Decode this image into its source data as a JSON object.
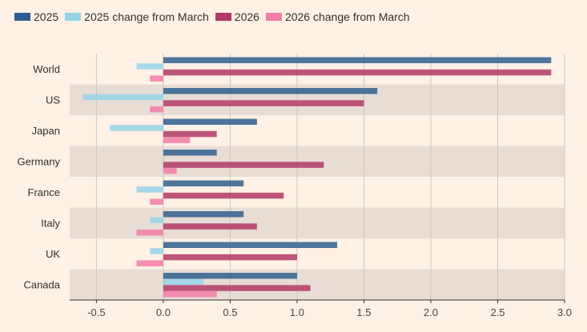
{
  "colors": {
    "background": "#FFF1E5",
    "band": "#E8DDD5",
    "grid": "#CEC6BF",
    "axis": "#33302E"
  },
  "legend": [
    {
      "label": "2025",
      "color": "#2F5F8E"
    },
    {
      "label": "2025 change from March",
      "color": "#96D3EA"
    },
    {
      "label": "2026",
      "color": "#B23A66"
    },
    {
      "label": "2026 change from March",
      "color": "#F37DA7"
    }
  ],
  "chart_data": {
    "type": "bar",
    "orientation": "horizontal",
    "categories": [
      "World",
      "US",
      "Japan",
      "Germany",
      "France",
      "Italy",
      "UK",
      "Canada"
    ],
    "series": [
      {
        "name": "2025",
        "color": "#2F5F8E",
        "values": [
          2.9,
          1.6,
          0.7,
          0.4,
          0.6,
          0.6,
          1.3,
          1.0
        ]
      },
      {
        "name": "2025 change from March",
        "color": "#96D3EA",
        "values": [
          -0.2,
          -0.6,
          -0.4,
          0.0,
          -0.2,
          -0.1,
          -0.1,
          0.3
        ]
      },
      {
        "name": "2026",
        "color": "#B23A66",
        "values": [
          2.9,
          1.5,
          0.4,
          1.2,
          0.9,
          0.7,
          1.0,
          1.1
        ]
      },
      {
        "name": "2026 change from March",
        "color": "#F37DA7",
        "values": [
          -0.1,
          -0.1,
          0.2,
          0.1,
          -0.1,
          -0.2,
          -0.2,
          0.4
        ]
      }
    ],
    "xlim": [
      -0.7,
      3.0
    ],
    "xticks": [
      -0.5,
      0.0,
      0.5,
      1.0,
      1.5,
      2.0,
      2.5,
      3.0
    ],
    "xtick_labels": [
      "-0.5",
      "0.0",
      "0.5",
      "1.0",
      "1.5",
      "2.0",
      "2.5",
      "3.0"
    ],
    "grid": true,
    "alternating_bands": true,
    "legend_position": "top-left"
  }
}
